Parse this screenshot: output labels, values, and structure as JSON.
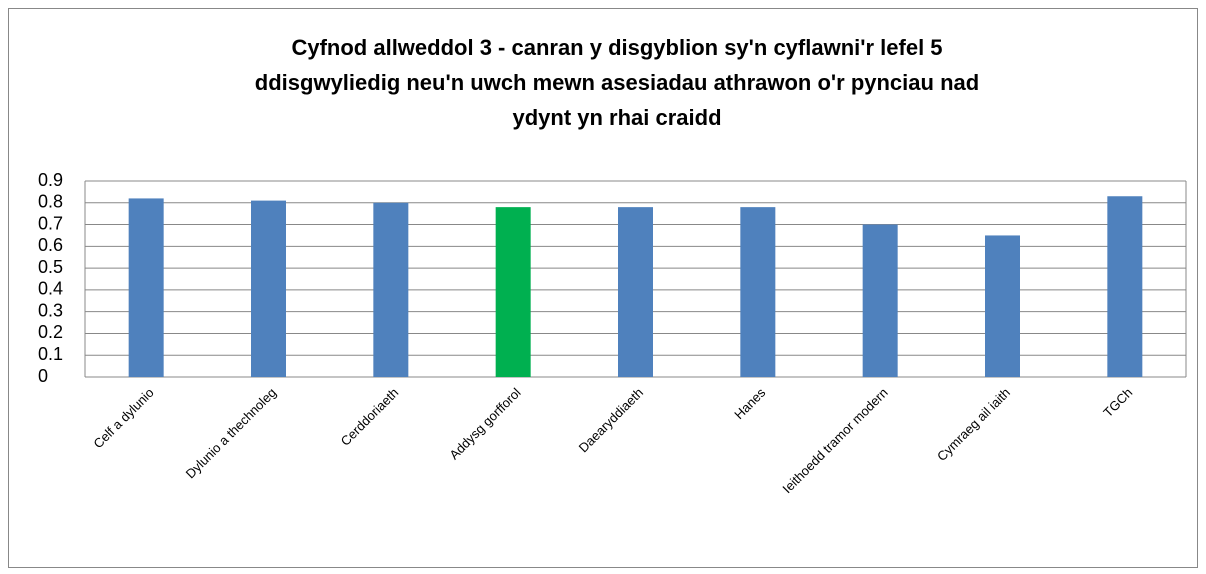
{
  "chart_data": {
    "type": "bar",
    "title": [
      "Cyfnod allweddol 3 - canran y disgyblion sy'n cyflawni'r lefel 5",
      "ddisgwyliedig neu'n uwch mewn asesiadau athrawon o'r pynciau nad",
      "ydynt yn rhai craidd"
    ],
    "categories": [
      "Celf a dylunio",
      "Dylunio a thechnoleg",
      "Cerddoriaeth",
      "Addysg gorfforol",
      "Daearyddiaeth",
      "Hanes",
      "Ieithoedd tramor modern",
      "Cymraeg ail iaith",
      "TGCh"
    ],
    "values": [
      0.82,
      0.81,
      0.8,
      0.78,
      0.78,
      0.78,
      0.7,
      0.65,
      0.83
    ],
    "colors": [
      "#4f81bd",
      "#4f81bd",
      "#4f81bd",
      "#00b050",
      "#4f81bd",
      "#4f81bd",
      "#4f81bd",
      "#4f81bd",
      "#4f81bd"
    ],
    "ylim": [
      0,
      0.9
    ],
    "yticks": [
      0,
      0.1,
      0.2,
      0.3,
      0.4,
      0.5,
      0.6,
      0.7,
      0.8,
      0.9
    ],
    "grid": true
  }
}
